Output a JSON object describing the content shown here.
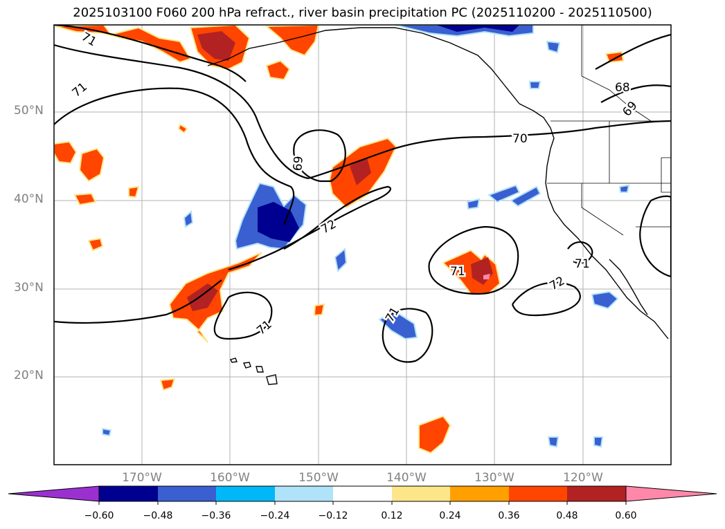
{
  "title": "2025103100 F060 200 hPa refract., river basin precipitation PC (2025110200 - 2025110500)",
  "lat_labels": [
    "50°N",
    "40°N",
    "30°N",
    "20°N"
  ],
  "lon_labels": [
    "170°W",
    "160°W",
    "150°W",
    "140°W",
    "130°W",
    "120°W"
  ],
  "contour_labels": [
    "71",
    "71",
    "69",
    "70",
    "72",
    "71",
    "72",
    "71",
    "71",
    "68",
    "69",
    "71"
  ],
  "colorbar": {
    "ticks": [
      "−0.60",
      "−0.48",
      "−0.36",
      "−0.24",
      "−0.12",
      "0.12",
      "0.24",
      "0.36",
      "0.48",
      "0.60"
    ],
    "colors": [
      "#9b30d0",
      "#000090",
      "#3a5fd0",
      "#00b8f8",
      "#b0e2fa",
      "#ffffff",
      "#fde68a",
      "#ffa000",
      "#ff4500",
      "#b22222",
      "#ff88aa",
      "#ff88aa"
    ]
  },
  "legend_colors": {
    "neg_strong": "#000090",
    "neg_mid": "#3a5fd0",
    "neg_weak": "#00b8f8",
    "neg_faint": "#b0e2fa",
    "pos_faint": "#fde68a",
    "pos_weak": "#ffa000",
    "pos_mid": "#ff4500",
    "pos_strong": "#b22222",
    "pos_max": "#ff88aa"
  }
}
